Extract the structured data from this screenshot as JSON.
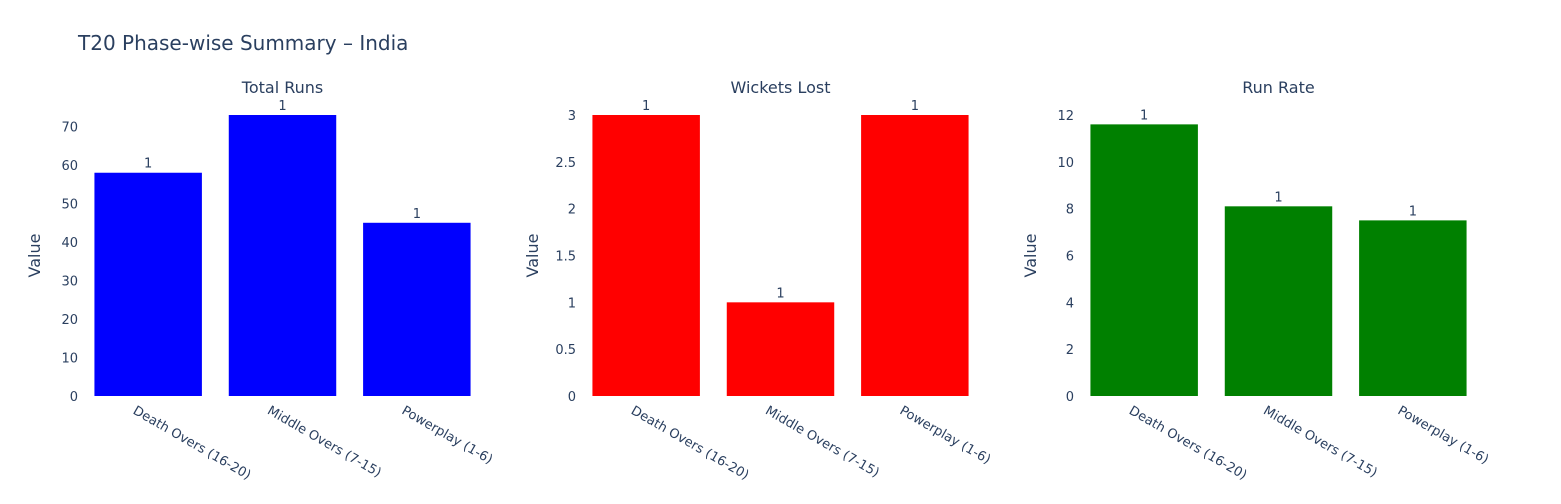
{
  "title": "T20 Phase-wise Summary – India",
  "chart_data": [
    {
      "type": "bar",
      "title": "Total Runs",
      "ylabel": "Value",
      "color": "#0000ff",
      "categories": [
        "Death Overs (16-20)",
        "Middle Overs (7-15)",
        "Powerplay (1-6)"
      ],
      "values": [
        58,
        73,
        45
      ],
      "data_labels": [
        "1",
        "1",
        "1"
      ],
      "ylim": [
        0,
        73
      ],
      "yticks": [
        0,
        10,
        20,
        30,
        40,
        50,
        60,
        70
      ],
      "ytick_labels": [
        "0",
        "10",
        "20",
        "30",
        "40",
        "50",
        "60",
        "70"
      ]
    },
    {
      "type": "bar",
      "title": "Wickets Lost",
      "ylabel": "Value",
      "color": "#ff0000",
      "categories": [
        "Death Overs (16-20)",
        "Middle Overs (7-15)",
        "Powerplay (1-6)"
      ],
      "values": [
        3,
        1,
        3
      ],
      "data_labels": [
        "1",
        "1",
        "1"
      ],
      "ylim": [
        0,
        3
      ],
      "yticks": [
        0,
        0.5,
        1,
        1.5,
        2,
        2.5,
        3
      ],
      "ytick_labels": [
        "0",
        "0.5",
        "1",
        "1.5",
        "2",
        "2.5",
        "3"
      ]
    },
    {
      "type": "bar",
      "title": "Run Rate",
      "ylabel": "Value",
      "color": "#008000",
      "categories": [
        "Death Overs (16-20)",
        "Middle Overs (7-15)",
        "Powerplay (1-6)"
      ],
      "values": [
        11.6,
        8.1,
        7.5
      ],
      "data_labels": [
        "1",
        "1",
        "1"
      ],
      "ylim": [
        0,
        12
      ],
      "yticks": [
        0,
        2,
        4,
        6,
        8,
        10,
        12
      ],
      "ytick_labels": [
        "0",
        "2",
        "4",
        "6",
        "8",
        "10",
        "12"
      ]
    }
  ]
}
